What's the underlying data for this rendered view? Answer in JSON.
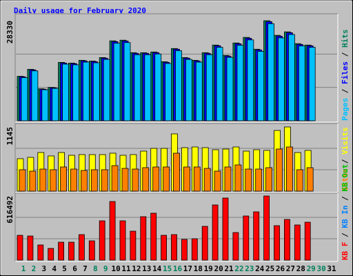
{
  "chart_data": {
    "type": "bar",
    "title": "Daily usage for February 2020",
    "categories": [
      "1",
      "2",
      "3",
      "4",
      "5",
      "6",
      "7",
      "8",
      "9",
      "10",
      "11",
      "12",
      "13",
      "14",
      "15",
      "16",
      "17",
      "18",
      "19",
      "20",
      "21",
      "22",
      "23",
      "24",
      "25",
      "26",
      "27",
      "28",
      "29",
      "30",
      "31"
    ],
    "category_colors": [
      "#00805C",
      "#00805C",
      "#000000",
      "#000000",
      "#000000",
      "#000000",
      "#000000",
      "#00805C",
      "#00805C",
      "#000000",
      "#000000",
      "#000000",
      "#000000",
      "#000000",
      "#00805C",
      "#00805C",
      "#000000",
      "#000000",
      "#000000",
      "#000000",
      "#000000",
      "#00805C",
      "#00805C",
      "#000000",
      "#000000",
      "#000000",
      "#000000",
      "#000000",
      "#00805C",
      "#00805C",
      "#000000"
    ],
    "separator": "/",
    "panels": [
      {
        "ylim": [
          0,
          28330
        ],
        "yticks": [
          28330
        ],
        "series": [
          {
            "name": "Hits",
            "color": "#00805C",
            "values": [
              12590,
              14560,
              9050,
              9440,
              16530,
              16330,
              17120,
              16920,
              17900,
              22630,
              22820,
              19280,
              19280,
              19480,
              16720,
              20460,
              17900,
              17120,
              19280,
              21440,
              18490,
              22030,
              23610,
              20260,
              28330,
              24200,
              25180,
              21840,
              21440,
              null,
              null
            ]
          },
          {
            "name": "Files",
            "color": "#0000FF",
            "values": [
              12460,
              14410,
              8960,
              9350,
              16360,
              16170,
              16950,
              16750,
              17720,
              22400,
              22590,
              19090,
              19090,
              19280,
              16550,
              20260,
              17720,
              16950,
              19090,
              21230,
              18310,
              21810,
              23370,
              20060,
              28050,
              23960,
              24930,
              21620,
              21230,
              null,
              null
            ]
          },
          {
            "name": "Pages",
            "color": "#00C0FF",
            "values": [
              12210,
              14120,
              8780,
              9160,
              16030,
              15840,
              16600,
              16410,
              17360,
              21950,
              22140,
              18700,
              18700,
              18900,
              16220,
              19850,
              17360,
              16600,
              18700,
              20800,
              17940,
              21370,
              22900,
              19650,
              27480,
              23470,
              24420,
              21180,
              20800,
              null,
              null
            ]
          }
        ]
      },
      {
        "ylim": [
          0,
          1145
        ],
        "yticks": [
          1145
        ],
        "series": [
          {
            "name": "Visits",
            "color": "#FFFF00",
            "values": [
              579,
              603,
              689,
              628,
              689,
              640,
              652,
              652,
              652,
              677,
              640,
              652,
              714,
              763,
              763,
              1022,
              776,
              788,
              776,
              739,
              751,
              788,
              714,
              739,
              727,
              1083,
              1145,
              689,
              727,
              null,
              null
            ]
          },
          {
            "name": "Sites",
            "color": "#FF8000",
            "values": [
              382,
              357,
              394,
              382,
              431,
              394,
              369,
              382,
              382,
              455,
              406,
              394,
              419,
              431,
              431,
              677,
              431,
              431,
              406,
              357,
              431,
              468,
              394,
              394,
              419,
              751,
              788,
              382,
              419,
              null,
              null
            ]
          }
        ]
      },
      {
        "ylim": [
          0,
          616492
        ],
        "yticks": [
          616492
        ],
        "series": [
          {
            "name": "KB F",
            "color": "#FF0000",
            "values": [
              238640,
              232010,
              145840,
              112690,
              172350,
              172350,
              245270,
              185610,
              377850,
              563460,
              377850,
              278420,
              417620,
              450760,
              238640,
              245270,
              198870,
              205500,
              324820,
              530320,
              596610,
              265160,
              424250,
              464020,
              616492,
              331440,
              391110,
              338070,
              364590,
              null,
              null
            ]
          }
        ],
        "legend_extra": [
          {
            "name": "KB In",
            "color": "#0080FF"
          },
          {
            "name": "KB Out",
            "color": "#00C000"
          }
        ]
      }
    ]
  }
}
